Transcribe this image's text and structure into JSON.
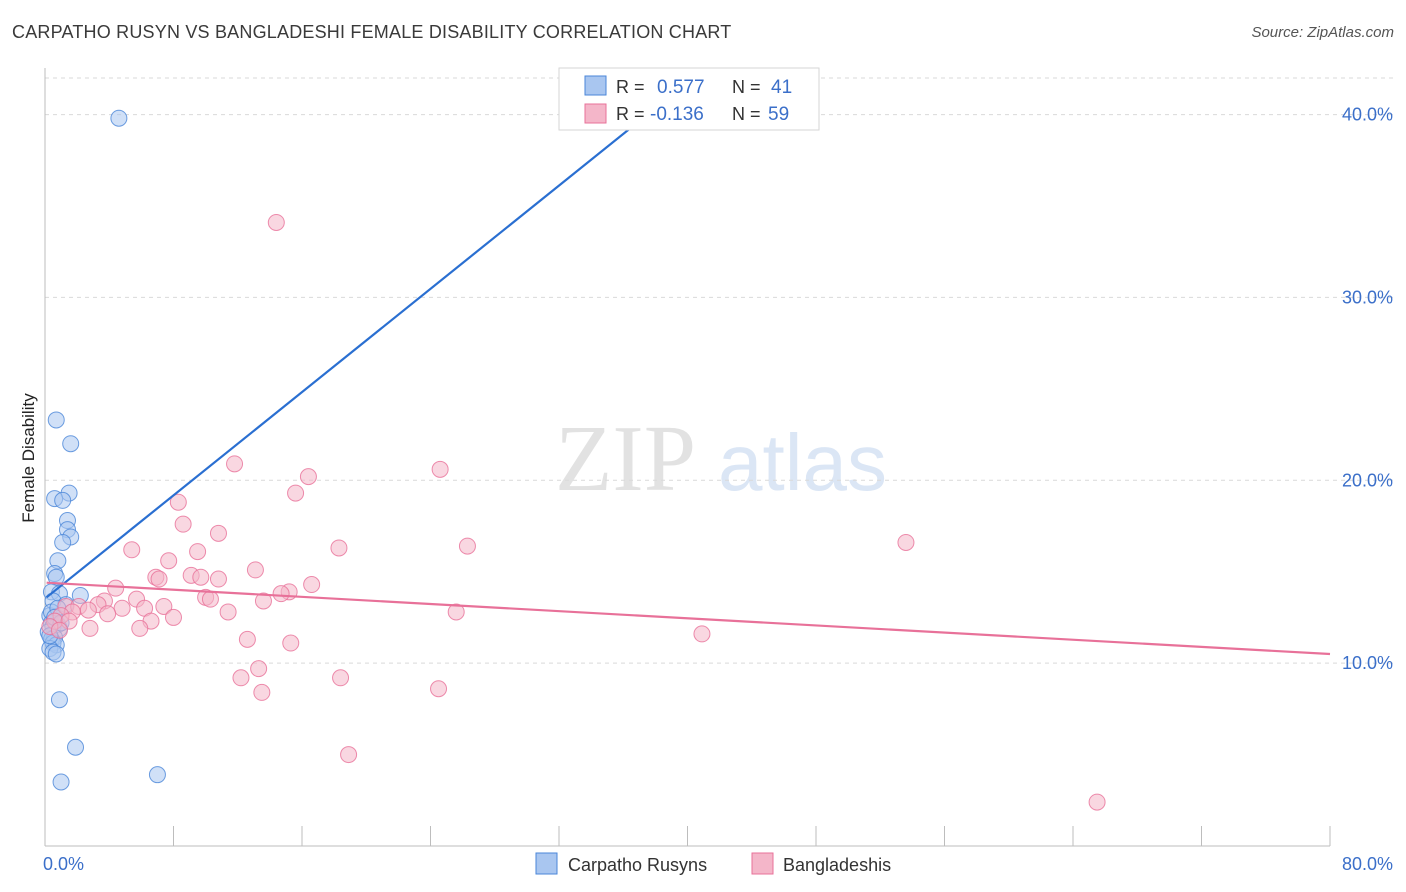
{
  "title": "CARPATHO RUSYN VS BANGLADESHI FEMALE DISABILITY CORRELATION CHART",
  "source": "Source: ZipAtlas.com",
  "watermark": {
    "part1": "ZIP",
    "part2": "atlas"
  },
  "colors": {
    "blue": "#4a86d8",
    "blue_fill": "#a9c6f0",
    "pink": "#e87199",
    "pink_fill": "#f4b6c9",
    "axis_label": "#3b6fc9",
    "grid": "#d9d9d9"
  },
  "chart_data": {
    "type": "scatter",
    "title": "CARPATHO RUSYN VS BANGLADESHI FEMALE DISABILITY CORRELATION CHART",
    "xlabel": "",
    "ylabel": "Female Disability",
    "xlim": [
      0,
      80
    ],
    "ylim": [
      0,
      42
    ],
    "x_tick_labels": [
      {
        "value": 0,
        "label": "0.0%"
      },
      {
        "value": 80,
        "label": "80.0%"
      }
    ],
    "y_tick_labels": [
      {
        "value": 10,
        "label": "10.0%"
      },
      {
        "value": 20,
        "label": "20.0%"
      },
      {
        "value": 30,
        "label": "30.0%"
      },
      {
        "value": 40,
        "label": "40.0%"
      }
    ],
    "legend_stats": [
      {
        "r_label": "R =",
        "r_value": "0.577",
        "n_label": "N =",
        "n_value": "41"
      },
      {
        "r_label": "R =",
        "r_value": "-0.136",
        "n_label": "N =",
        "n_value": "59"
      }
    ],
    "series": [
      {
        "name": "Carpatho Rusyns",
        "color": "blue",
        "trend": {
          "x": [
            0.1,
            37.5
          ],
          "y": [
            13.6,
            40.0
          ]
        },
        "points": [
          [
            4.6,
            39.8
          ],
          [
            0.7,
            23.3
          ],
          [
            1.6,
            22.0
          ],
          [
            1.5,
            19.3
          ],
          [
            0.6,
            19.0
          ],
          [
            1.1,
            18.9
          ],
          [
            1.4,
            17.8
          ],
          [
            1.4,
            17.3
          ],
          [
            1.6,
            16.9
          ],
          [
            1.1,
            16.6
          ],
          [
            0.8,
            15.6
          ],
          [
            0.6,
            14.9
          ],
          [
            0.7,
            14.7
          ],
          [
            0.4,
            13.9
          ],
          [
            0.9,
            13.8
          ],
          [
            2.2,
            13.7
          ],
          [
            0.5,
            13.4
          ],
          [
            1.3,
            13.2
          ],
          [
            0.3,
            12.6
          ],
          [
            0.6,
            12.3
          ],
          [
            0.4,
            12.2
          ],
          [
            0.8,
            12.1
          ],
          [
            0.5,
            12.0
          ],
          [
            0.9,
            11.9
          ],
          [
            0.2,
            11.7
          ],
          [
            0.6,
            11.4
          ],
          [
            0.4,
            11.3
          ],
          [
            0.5,
            11.1
          ],
          [
            0.7,
            11.0
          ],
          [
            0.3,
            10.8
          ],
          [
            0.5,
            10.6
          ],
          [
            0.7,
            10.5
          ],
          [
            0.9,
            8.0
          ],
          [
            1.9,
            5.4
          ],
          [
            1.0,
            3.5
          ],
          [
            7.0,
            3.9
          ],
          [
            0.4,
            12.8
          ],
          [
            0.8,
            13.0
          ],
          [
            0.3,
            11.5
          ],
          [
            0.6,
            12.5
          ],
          [
            1.0,
            12.2
          ]
        ]
      },
      {
        "name": "Bangladeshis",
        "color": "pink",
        "trend": {
          "x": [
            0.1,
            80.0
          ],
          "y": [
            14.4,
            10.5
          ]
        },
        "points": [
          [
            14.4,
            34.1
          ],
          [
            11.8,
            20.9
          ],
          [
            24.6,
            20.6
          ],
          [
            16.4,
            20.2
          ],
          [
            15.6,
            19.3
          ],
          [
            8.3,
            18.8
          ],
          [
            8.6,
            17.6
          ],
          [
            10.8,
            17.1
          ],
          [
            53.6,
            16.6
          ],
          [
            26.3,
            16.4
          ],
          [
            18.3,
            16.3
          ],
          [
            5.4,
            16.2
          ],
          [
            9.5,
            16.1
          ],
          [
            7.7,
            15.6
          ],
          [
            13.1,
            15.1
          ],
          [
            6.9,
            14.7
          ],
          [
            7.1,
            14.6
          ],
          [
            9.1,
            14.8
          ],
          [
            9.7,
            14.7
          ],
          [
            10.8,
            14.6
          ],
          [
            16.6,
            14.3
          ],
          [
            4.4,
            14.1
          ],
          [
            15.2,
            13.9
          ],
          [
            14.7,
            13.8
          ],
          [
            5.7,
            13.5
          ],
          [
            10.0,
            13.6
          ],
          [
            10.3,
            13.5
          ],
          [
            3.7,
            13.4
          ],
          [
            13.6,
            13.4
          ],
          [
            3.3,
            13.2
          ],
          [
            1.3,
            13.1
          ],
          [
            2.1,
            13.1
          ],
          [
            4.8,
            13.0
          ],
          [
            6.2,
            13.0
          ],
          [
            7.4,
            13.1
          ],
          [
            2.7,
            12.9
          ],
          [
            11.4,
            12.8
          ],
          [
            25.6,
            12.8
          ],
          [
            1.7,
            12.8
          ],
          [
            3.9,
            12.7
          ],
          [
            1.0,
            12.6
          ],
          [
            8.0,
            12.5
          ],
          [
            6.6,
            12.3
          ],
          [
            0.6,
            12.3
          ],
          [
            1.5,
            12.3
          ],
          [
            0.3,
            12.0
          ],
          [
            2.8,
            11.9
          ],
          [
            5.9,
            11.9
          ],
          [
            0.9,
            11.8
          ],
          [
            40.9,
            11.6
          ],
          [
            12.6,
            11.3
          ],
          [
            15.3,
            11.1
          ],
          [
            13.3,
            9.7
          ],
          [
            18.4,
            9.2
          ],
          [
            12.2,
            9.2
          ],
          [
            24.5,
            8.6
          ],
          [
            13.5,
            8.4
          ],
          [
            18.9,
            5.0
          ],
          [
            65.5,
            2.4
          ]
        ]
      }
    ]
  }
}
